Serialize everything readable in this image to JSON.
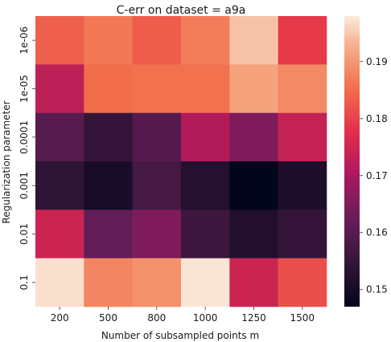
{
  "chart_data": {
    "type": "heatmap",
    "title": "C-err on dataset = a9a",
    "xlabel": "Number of subsampled points m",
    "ylabel": "Regularization parameter",
    "x_categories": [
      "200",
      "500",
      "800",
      "1000",
      "1250",
      "1500"
    ],
    "y_categories": [
      "1e-06",
      "1e-05",
      "0.0001",
      "0.001",
      "0.01",
      "0.1"
    ],
    "values": [
      [
        0.1835,
        0.1865,
        0.183,
        0.187,
        0.1945,
        0.179
      ],
      [
        0.1725,
        0.185,
        0.1855,
        0.1855,
        0.1915,
        0.1885
      ],
      [
        0.16,
        0.155,
        0.1595,
        0.171,
        0.165,
        0.1735
      ],
      [
        0.154,
        0.1505,
        0.1575,
        0.1525,
        0.147,
        0.1515
      ],
      [
        0.1745,
        0.1615,
        0.165,
        0.156,
        0.152,
        0.155
      ],
      [
        0.197,
        0.188,
        0.1895,
        0.1975,
        0.1745,
        0.1815
      ]
    ],
    "colorbar": {
      "min": 0.147,
      "max": 0.198,
      "ticks": [
        "0.15",
        "0.16",
        "0.17",
        "0.18",
        "0.19"
      ],
      "tick_values": [
        0.15,
        0.16,
        0.17,
        0.18,
        0.19
      ]
    },
    "colormap": "rocket",
    "grid": false,
    "legend": "colorbar-right"
  }
}
